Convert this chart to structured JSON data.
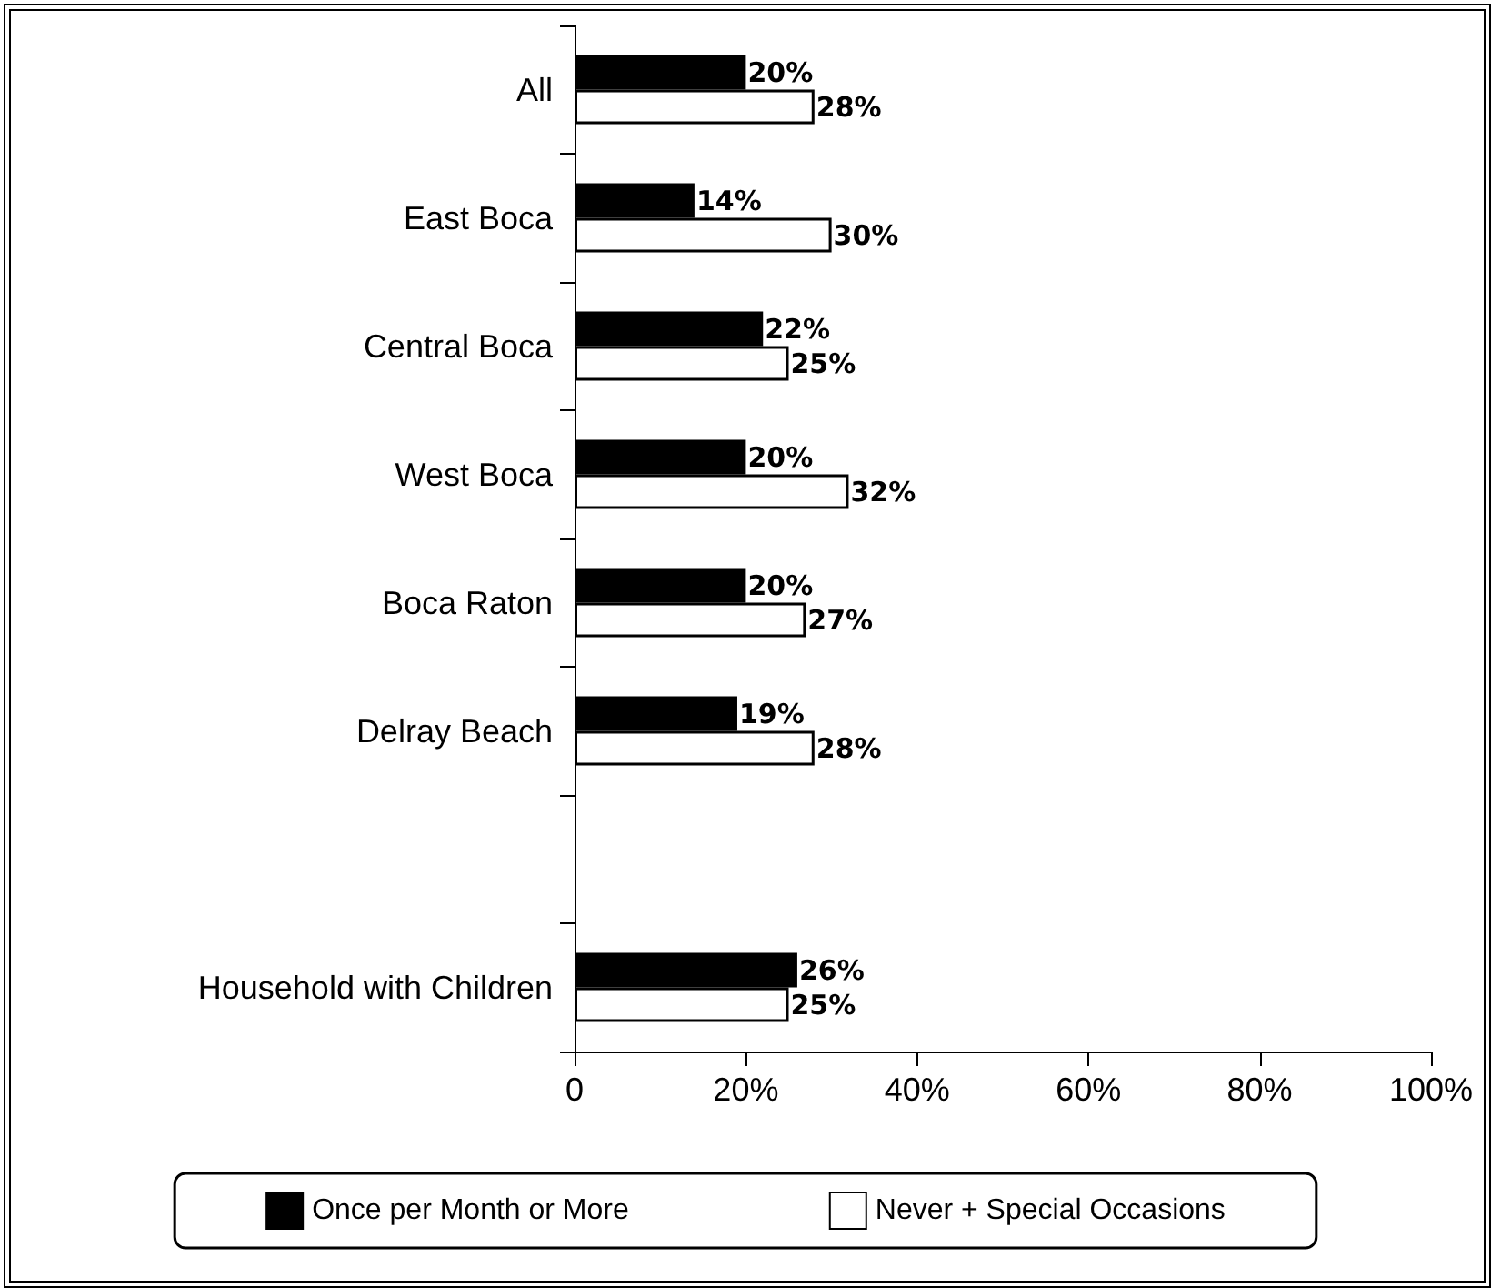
{
  "chart_data": {
    "type": "bar",
    "orientation": "horizontal",
    "categories": [
      "All",
      "East Boca",
      "Central Boca",
      "West Boca",
      "Boca Raton",
      "Delray Beach",
      null,
      "Household with Children"
    ],
    "series": [
      {
        "name": "Once per Month or More",
        "color": "#000000",
        "values": [
          20,
          14,
          22,
          20,
          20,
          19,
          null,
          26
        ],
        "value_labels": [
          "20%",
          "14%",
          "22%",
          "20%",
          "20%",
          "19%",
          null,
          "26%"
        ]
      },
      {
        "name": "Never + Special Occasions",
        "color": "#ffffff",
        "values": [
          28,
          30,
          25,
          32,
          27,
          28,
          null,
          25
        ],
        "value_labels": [
          "28%",
          "30%",
          "25%",
          "32%",
          "27%",
          "28%",
          null,
          "25%"
        ]
      }
    ],
    "xlim": [
      0,
      100
    ],
    "xticks": [
      0,
      {
        "value": 20,
        "label": "20%"
      },
      {
        "value": 40,
        "label": "40%"
      },
      {
        "value": 60,
        "label": "60%"
      },
      {
        "value": 80,
        "label": "80%"
      },
      {
        "value": 100,
        "label": "100%"
      }
    ],
    "grid": false,
    "legend": "bottom"
  }
}
